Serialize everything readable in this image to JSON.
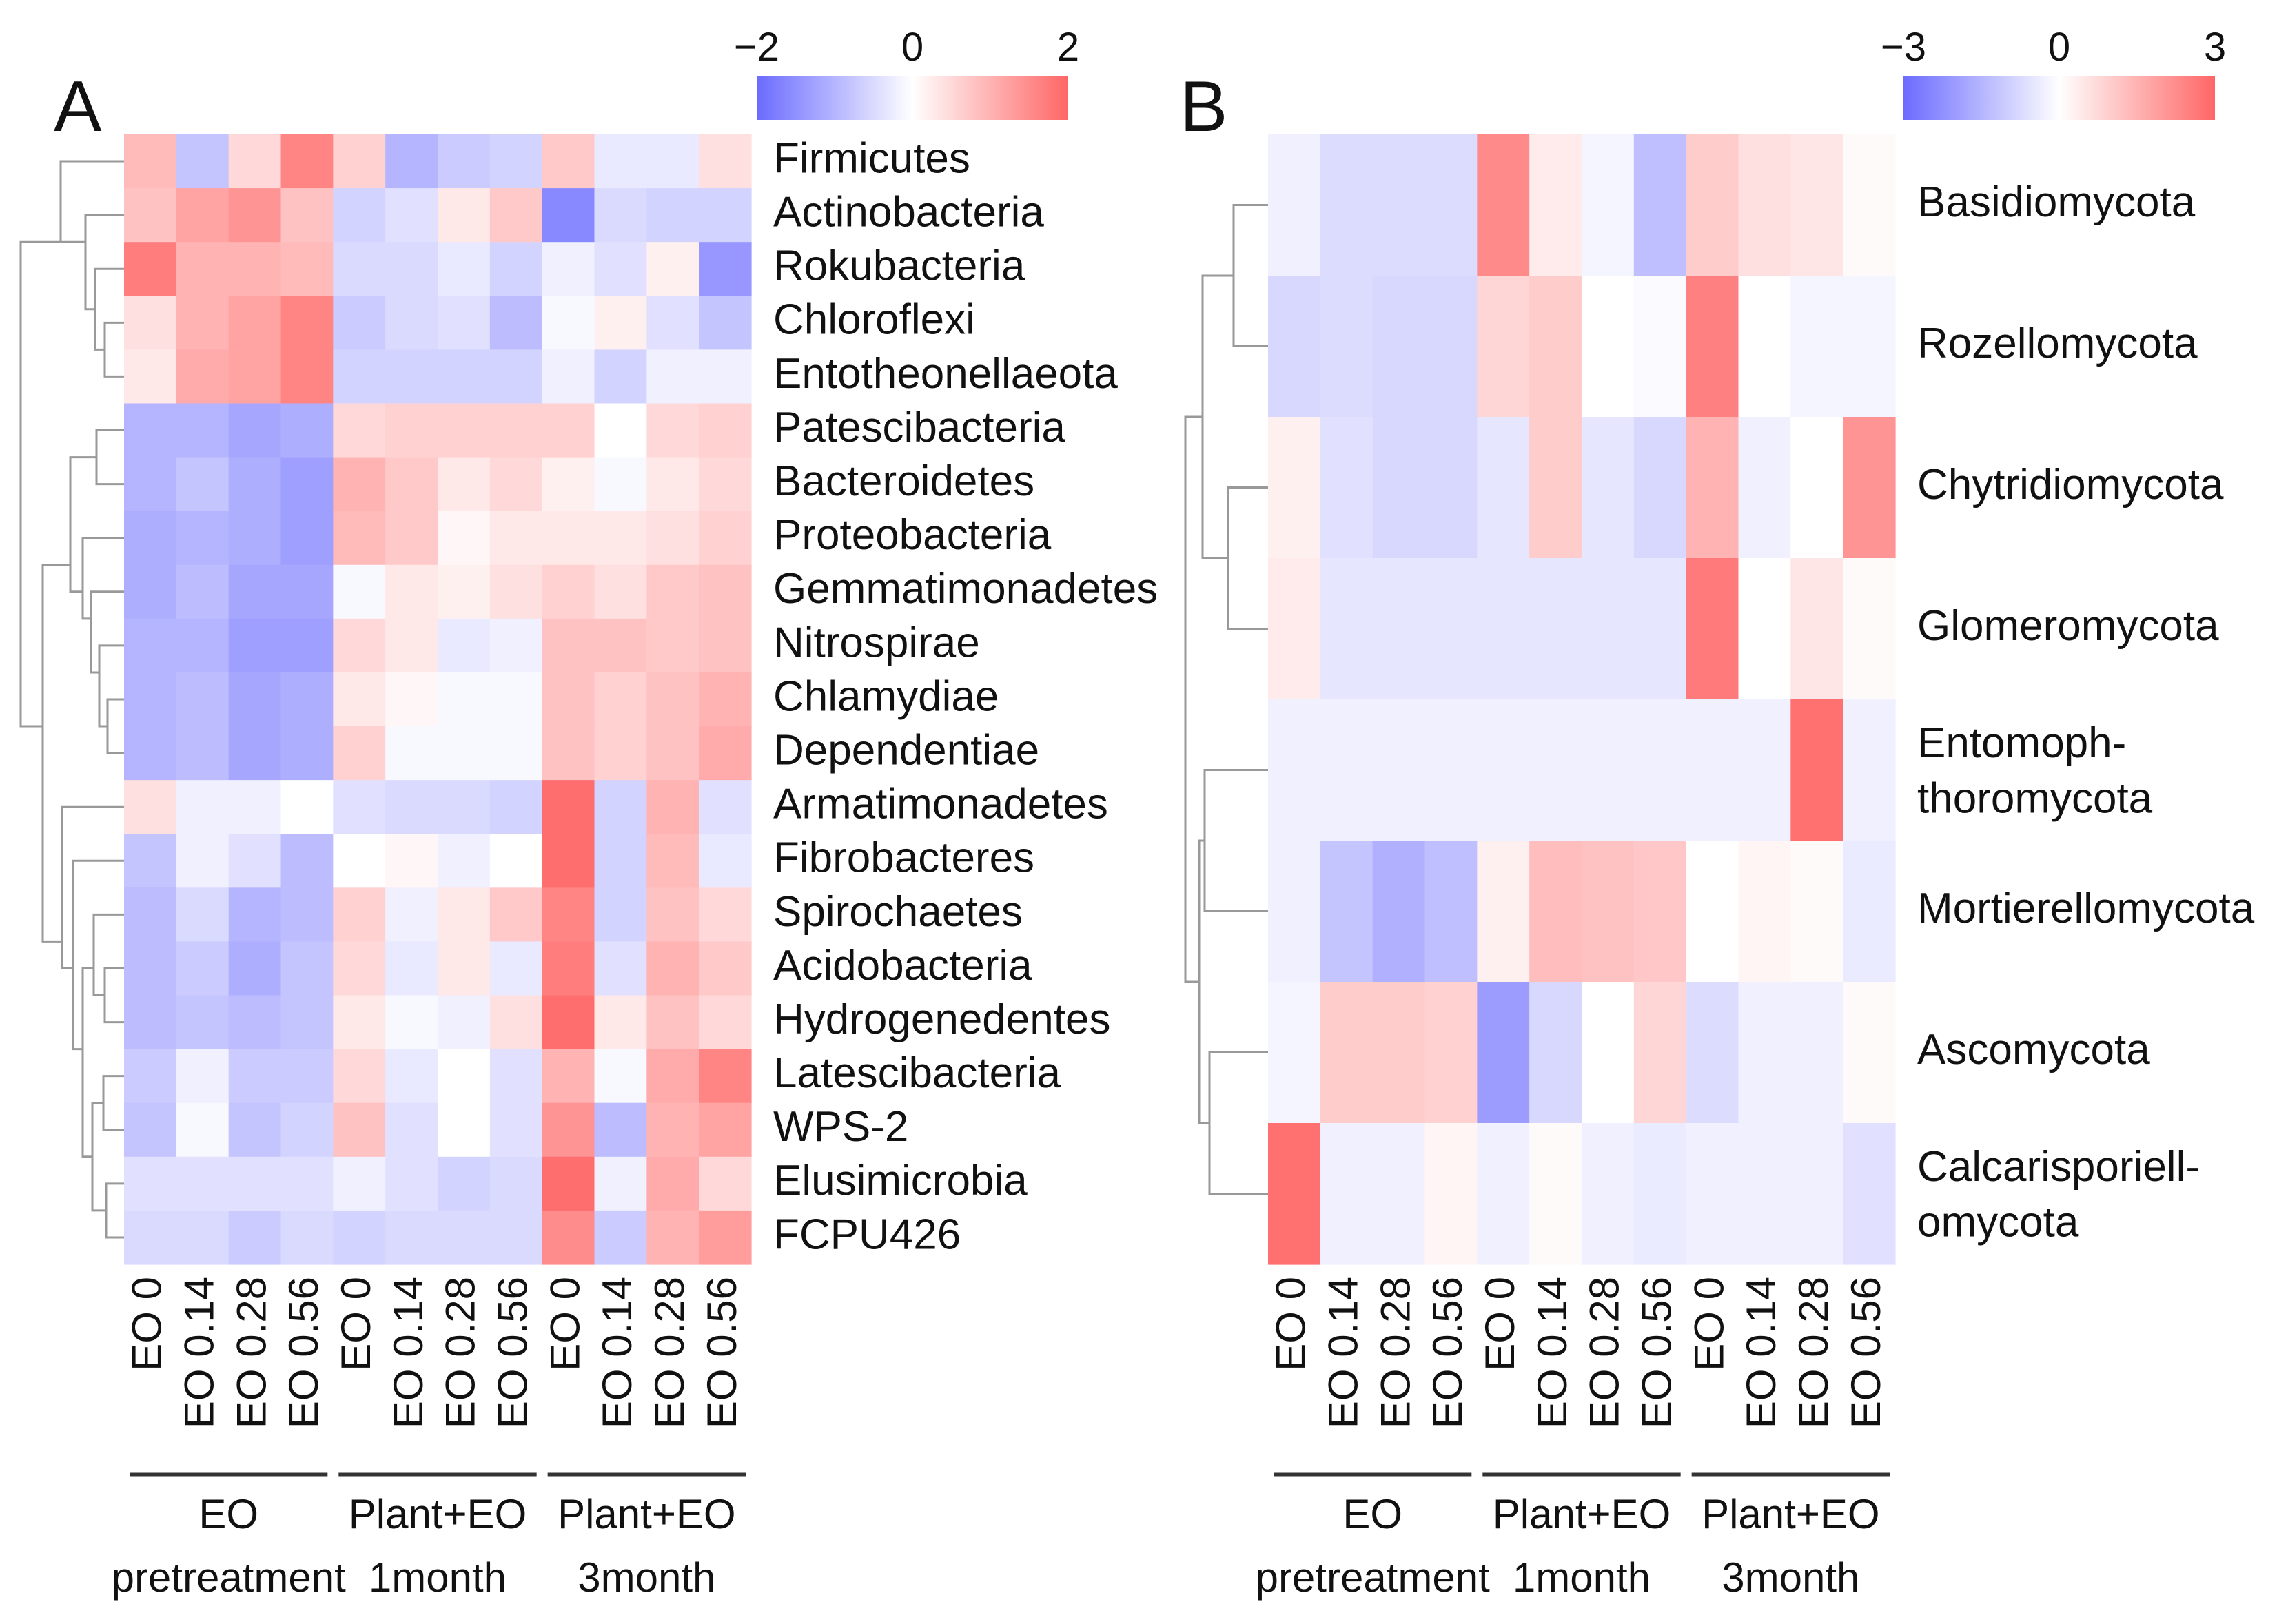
{
  "columns": [
    "EO 0",
    "EO 0.14",
    "EO 0.28",
    "EO 0.56",
    "EO 0",
    "EO 0.14",
    "EO 0.28",
    "EO 0.56",
    "EO 0",
    "EO 0.14",
    "EO 0.28",
    "EO 0.56"
  ],
  "group_a": [
    {
      "line1": "EO",
      "line2": "pretreatment"
    },
    {
      "line1": "Plant+EO",
      "line2": "1month"
    },
    {
      "line1": "Plant+EO",
      "line2": "3month"
    }
  ],
  "group_b": [
    {
      "line1": "EO",
      "line2": "pretreatment"
    },
    {
      "line1": "Plant+EO",
      "line2": "1month"
    },
    {
      "line1": "Plant+EO",
      "line2": "3month"
    }
  ],
  "colors": {
    "low": "#6b6bff",
    "mid": "#ffffff",
    "high": "#ff6666",
    "dendrogram": "#999999"
  },
  "chart_data": [
    {
      "type": "heatmap",
      "panel_label": "A",
      "color_scale": {
        "min": -2,
        "max": 2,
        "ticks": [
          "−2",
          "0",
          "2"
        ]
      },
      "rows": [
        "Firmicutes",
        "Actinobacteria",
        "Rokubacteria",
        "Chloroflexi",
        "Entotheonellaeota",
        "Patescibacteria",
        "Bacteroidetes",
        "Proteobacteria",
        "Gemmatimonadetes",
        "Nitrospirae",
        "Chlamydiae",
        "Dependentiae",
        "Armatimonadetes",
        "Fibrobacteres",
        "Spirochaetes",
        "Acidobacteria",
        "Hydrogenedentes",
        "Latescibacteria",
        "WPS-2",
        "Elusimicrobia",
        "FCPU426"
      ],
      "values": [
        [
          0.9,
          -0.8,
          0.5,
          1.6,
          0.6,
          -1.0,
          -0.7,
          -0.6,
          0.7,
          -0.3,
          -0.3,
          0.4
        ],
        [
          0.8,
          1.2,
          1.4,
          0.8,
          -0.6,
          -0.4,
          0.3,
          0.7,
          -1.6,
          -0.5,
          -0.6,
          -0.6
        ],
        [
          1.7,
          1.0,
          1.0,
          0.9,
          -0.5,
          -0.5,
          -0.3,
          -0.6,
          -0.2,
          -0.4,
          0.2,
          -1.4
        ],
        [
          0.4,
          1.0,
          1.2,
          1.6,
          -0.7,
          -0.5,
          -0.4,
          -0.9,
          -0.1,
          0.2,
          -0.4,
          -0.8
        ],
        [
          0.3,
          1.1,
          1.2,
          1.6,
          -0.6,
          -0.6,
          -0.6,
          -0.6,
          -0.2,
          -0.6,
          -0.2,
          -0.2
        ],
        [
          -1.0,
          -1.0,
          -1.2,
          -1.1,
          0.5,
          0.6,
          0.6,
          0.6,
          0.6,
          0.0,
          0.5,
          0.6
        ],
        [
          -1.0,
          -0.8,
          -1.1,
          -1.3,
          1.0,
          0.7,
          0.3,
          0.5,
          0.2,
          -0.1,
          0.3,
          0.5
        ],
        [
          -1.1,
          -1.0,
          -1.1,
          -1.3,
          0.9,
          0.7,
          0.1,
          0.3,
          0.3,
          0.3,
          0.4,
          0.6
        ],
        [
          -1.1,
          -0.9,
          -1.2,
          -1.2,
          -0.1,
          0.3,
          0.2,
          0.4,
          0.6,
          0.4,
          0.7,
          0.8
        ],
        [
          -1.0,
          -1.0,
          -1.3,
          -1.3,
          0.5,
          0.3,
          -0.3,
          -0.2,
          0.8,
          0.8,
          0.7,
          0.8
        ],
        [
          -1.0,
          -0.9,
          -1.2,
          -1.1,
          0.3,
          0.1,
          -0.1,
          -0.1,
          0.8,
          0.6,
          0.8,
          1.0
        ],
        [
          -1.0,
          -0.9,
          -1.2,
          -1.1,
          0.6,
          -0.1,
          -0.1,
          -0.1,
          0.8,
          0.6,
          0.8,
          1.1
        ],
        [
          0.4,
          -0.2,
          -0.2,
          0.0,
          -0.4,
          -0.5,
          -0.5,
          -0.6,
          1.9,
          -0.6,
          1.0,
          -0.4
        ],
        [
          -0.8,
          -0.2,
          -0.4,
          -0.9,
          0.0,
          0.1,
          -0.2,
          0.0,
          1.9,
          -0.6,
          0.9,
          -0.3
        ],
        [
          -0.9,
          -0.5,
          -1.0,
          -0.9,
          0.6,
          -0.2,
          0.3,
          0.7,
          1.6,
          -0.6,
          0.8,
          0.5
        ],
        [
          -0.9,
          -0.7,
          -1.1,
          -0.8,
          0.5,
          -0.3,
          0.3,
          -0.3,
          1.7,
          -0.4,
          1.0,
          0.7
        ],
        [
          -0.9,
          -0.8,
          -0.9,
          -0.8,
          0.3,
          -0.1,
          -0.2,
          0.4,
          1.9,
          0.3,
          0.8,
          0.5
        ],
        [
          -0.7,
          -0.2,
          -0.7,
          -0.7,
          0.5,
          -0.3,
          0.0,
          -0.4,
          1.0,
          -0.1,
          1.1,
          1.6
        ],
        [
          -0.8,
          -0.1,
          -0.8,
          -0.6,
          0.8,
          -0.4,
          0.0,
          -0.4,
          1.4,
          -0.9,
          1.0,
          1.2
        ],
        [
          -0.4,
          -0.4,
          -0.4,
          -0.4,
          -0.2,
          -0.4,
          -0.6,
          -0.5,
          1.9,
          -0.2,
          1.1,
          0.5
        ],
        [
          -0.5,
          -0.5,
          -0.7,
          -0.5,
          -0.6,
          -0.5,
          -0.5,
          -0.5,
          1.5,
          -0.7,
          1.0,
          1.3
        ]
      ]
    },
    {
      "type": "heatmap",
      "panel_label": "B",
      "color_scale": {
        "min": -3,
        "max": 3,
        "ticks": [
          "−3",
          "0",
          "3"
        ]
      },
      "rows": [
        "Basidiomycota",
        "Rozellomycota",
        "Chytridiomycota",
        "Glomeromycota",
        "Entomoph-\nthoromycota",
        "Mortierellomycota",
        "Ascomycota",
        "Calcarisporiell-\nomycota"
      ],
      "values": [
        [
          -0.3,
          -0.7,
          -0.7,
          -0.7,
          2.3,
          0.4,
          -0.2,
          -1.3,
          1.0,
          0.6,
          0.5,
          0.1
        ],
        [
          -0.8,
          -0.7,
          -0.8,
          -0.8,
          0.8,
          1.0,
          0.0,
          -0.1,
          2.5,
          0.0,
          -0.2,
          -0.2
        ],
        [
          0.3,
          -0.6,
          -0.8,
          -0.8,
          -0.5,
          1.0,
          -0.5,
          -0.8,
          1.5,
          -0.3,
          0.0,
          2.1
        ],
        [
          0.4,
          -0.5,
          -0.5,
          -0.5,
          -0.5,
          -0.5,
          -0.5,
          -0.5,
          2.6,
          0.0,
          0.5,
          0.1
        ],
        [
          -0.3,
          -0.3,
          -0.3,
          -0.3,
          -0.3,
          -0.3,
          -0.3,
          -0.3,
          -0.3,
          -0.3,
          2.8,
          -0.3
        ],
        [
          -0.3,
          -1.2,
          -1.6,
          -1.3,
          0.3,
          1.3,
          1.2,
          1.1,
          0.0,
          0.2,
          0.1,
          -0.4
        ],
        [
          -0.2,
          1.0,
          1.0,
          0.9,
          -2.0,
          -0.8,
          0.0,
          0.8,
          -0.7,
          -0.3,
          -0.3,
          0.1
        ],
        [
          2.8,
          -0.3,
          -0.3,
          0.2,
          -0.3,
          0.1,
          -0.3,
          -0.4,
          -0.3,
          -0.3,
          -0.3,
          -0.6
        ]
      ]
    }
  ]
}
